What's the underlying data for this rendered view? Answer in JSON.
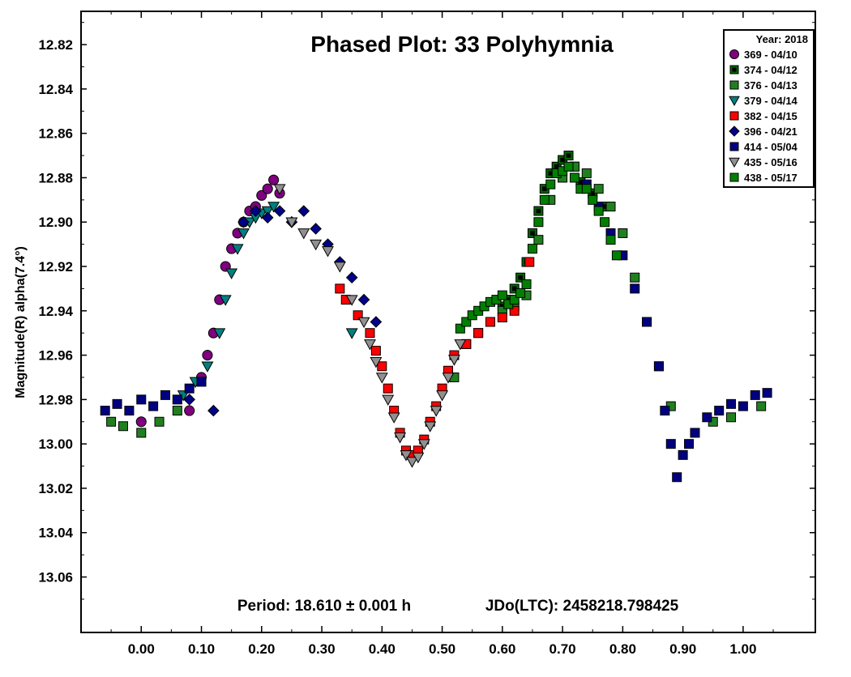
{
  "chart_data": {
    "type": "scatter",
    "title": "Phased Plot: 33 Polyhymnia",
    "xlabel": "",
    "ylabel": "Magnitude(R) alpha(7.4°)",
    "xlim": [
      -0.1,
      1.12
    ],
    "ylim": [
      12.805,
      13.085
    ],
    "y_inverted": true,
    "x_ticks": [
      0.0,
      0.1,
      0.2,
      0.3,
      0.4,
      0.5,
      0.6,
      0.7,
      0.8,
      0.9,
      1.0
    ],
    "x_tick_labels": [
      "0.00",
      "0.10",
      "0.20",
      "0.30",
      "0.40",
      "0.50",
      "0.60",
      "0.70",
      "0.80",
      "0.90",
      "1.00"
    ],
    "y_ticks": [
      12.82,
      12.84,
      12.86,
      12.88,
      12.9,
      12.92,
      12.94,
      12.96,
      12.98,
      13.0,
      13.02,
      13.04,
      13.06
    ],
    "y_tick_labels": [
      "12.82",
      "12.84",
      "12.86",
      "12.88",
      "12.90",
      "12.92",
      "12.94",
      "12.96",
      "12.98",
      "13.00",
      "13.02",
      "13.04",
      "13.06"
    ],
    "annotations": {
      "period": "Period: 18.610 ± 0.001 h",
      "jdo": "JDo(LTC): 2458218.798425"
    },
    "legend": {
      "placement": "top-right",
      "title": "Year: 2018",
      "entries": [
        "369 - 04/10",
        "374 - 04/12",
        "376 - 04/13",
        "379 - 04/14",
        "382 - 04/15",
        "396 - 04/21",
        "414 - 05/04",
        "435 - 05/16",
        "438 - 05/17"
      ]
    },
    "grid": false,
    "series": [
      {
        "name": "369 - 04/10",
        "marker": "circle",
        "color": "#800080",
        "points": [
          [
            0.0,
            12.99
          ],
          [
            0.08,
            12.985
          ],
          [
            0.1,
            12.97
          ],
          [
            0.11,
            12.96
          ],
          [
            0.12,
            12.95
          ],
          [
            0.13,
            12.935
          ],
          [
            0.14,
            12.92
          ],
          [
            0.15,
            12.912
          ],
          [
            0.16,
            12.905
          ],
          [
            0.17,
            12.9
          ],
          [
            0.18,
            12.895
          ],
          [
            0.19,
            12.893
          ],
          [
            0.2,
            12.888
          ],
          [
            0.21,
            12.885
          ],
          [
            0.22,
            12.881
          ],
          [
            0.23,
            12.887
          ]
        ]
      },
      {
        "name": "374 - 04/12",
        "marker": "square",
        "color": "#006400",
        "points": [
          [
            0.6,
            12.938
          ],
          [
            0.61,
            12.935
          ],
          [
            0.62,
            12.93
          ],
          [
            0.63,
            12.925
          ],
          [
            0.64,
            12.918
          ],
          [
            0.65,
            12.905
          ],
          [
            0.66,
            12.895
          ],
          [
            0.67,
            12.885
          ],
          [
            0.68,
            12.878
          ],
          [
            0.69,
            12.875
          ],
          [
            0.7,
            12.872
          ],
          [
            0.71,
            12.87
          ],
          [
            0.72,
            12.875
          ],
          [
            0.73,
            12.882
          ],
          [
            0.75,
            12.887
          ],
          [
            0.77,
            12.893
          ]
        ]
      },
      {
        "name": "376 - 04/13",
        "marker": "square",
        "color": "#208020",
        "points": [
          [
            -0.05,
            12.99
          ],
          [
            -0.03,
            12.992
          ],
          [
            0.0,
            12.995
          ],
          [
            0.03,
            12.99
          ],
          [
            0.06,
            12.985
          ],
          [
            0.52,
            12.97
          ],
          [
            0.54,
            12.955
          ],
          [
            0.56,
            12.95
          ],
          [
            0.58,
            12.945
          ],
          [
            0.6,
            12.94
          ],
          [
            0.62,
            12.938
          ],
          [
            0.64,
            12.933
          ],
          [
            0.66,
            12.908
          ],
          [
            0.68,
            12.89
          ],
          [
            0.7,
            12.88
          ],
          [
            0.72,
            12.875
          ],
          [
            0.74,
            12.878
          ],
          [
            0.76,
            12.885
          ],
          [
            0.78,
            12.893
          ],
          [
            0.8,
            12.905
          ],
          [
            0.82,
            12.925
          ],
          [
            0.84,
            12.945
          ],
          [
            0.86,
            12.965
          ],
          [
            0.88,
            12.983
          ],
          [
            0.95,
            12.99
          ],
          [
            0.98,
            12.988
          ],
          [
            1.03,
            12.983
          ]
        ]
      },
      {
        "name": "379 - 04/14",
        "marker": "triangle-down",
        "color": "#008080",
        "points": [
          [
            0.07,
            12.978
          ],
          [
            0.09,
            12.972
          ],
          [
            0.11,
            12.965
          ],
          [
            0.13,
            12.95
          ],
          [
            0.14,
            12.935
          ],
          [
            0.15,
            12.923
          ],
          [
            0.16,
            12.912
          ],
          [
            0.17,
            12.905
          ],
          [
            0.18,
            12.9
          ],
          [
            0.19,
            12.898
          ],
          [
            0.2,
            12.896
          ],
          [
            0.21,
            12.895
          ],
          [
            0.22,
            12.893
          ],
          [
            0.35,
            12.95
          ]
        ]
      },
      {
        "name": "382 - 04/15",
        "marker": "square",
        "color": "#ff0000",
        "points": [
          [
            0.33,
            12.93
          ],
          [
            0.34,
            12.935
          ],
          [
            0.36,
            12.942
          ],
          [
            0.38,
            12.95
          ],
          [
            0.39,
            12.958
          ],
          [
            0.4,
            12.965
          ],
          [
            0.41,
            12.975
          ],
          [
            0.42,
            12.985
          ],
          [
            0.43,
            12.995
          ],
          [
            0.44,
            13.003
          ],
          [
            0.45,
            13.005
          ],
          [
            0.46,
            13.003
          ],
          [
            0.47,
            12.998
          ],
          [
            0.48,
            12.99
          ],
          [
            0.49,
            12.983
          ],
          [
            0.5,
            12.975
          ],
          [
            0.51,
            12.967
          ],
          [
            0.52,
            12.96
          ],
          [
            0.54,
            12.955
          ],
          [
            0.56,
            12.95
          ],
          [
            0.58,
            12.945
          ],
          [
            0.6,
            12.943
          ],
          [
            0.62,
            12.94
          ],
          [
            0.645,
            12.918
          ]
        ]
      },
      {
        "name": "396 - 04/21",
        "marker": "diamond",
        "color": "#00008b",
        "points": [
          [
            0.17,
            12.9
          ],
          [
            0.19,
            12.895
          ],
          [
            0.21,
            12.898
          ],
          [
            0.23,
            12.895
          ],
          [
            0.25,
            12.9
          ],
          [
            0.27,
            12.895
          ],
          [
            0.29,
            12.903
          ],
          [
            0.31,
            12.91
          ],
          [
            0.33,
            12.918
          ],
          [
            0.35,
            12.925
          ],
          [
            0.37,
            12.935
          ],
          [
            0.39,
            12.945
          ],
          [
            0.08,
            12.98
          ],
          [
            0.12,
            12.985
          ]
        ]
      },
      {
        "name": "414 - 05/04",
        "marker": "square",
        "color": "#000080",
        "points": [
          [
            -0.06,
            12.985
          ],
          [
            -0.04,
            12.982
          ],
          [
            -0.02,
            12.985
          ],
          [
            0.0,
            12.98
          ],
          [
            0.02,
            12.983
          ],
          [
            0.04,
            12.978
          ],
          [
            0.06,
            12.98
          ],
          [
            0.08,
            12.975
          ],
          [
            0.1,
            12.972
          ],
          [
            0.74,
            12.883
          ],
          [
            0.76,
            12.893
          ],
          [
            0.78,
            12.905
          ],
          [
            0.8,
            12.915
          ],
          [
            0.82,
            12.93
          ],
          [
            0.84,
            12.945
          ],
          [
            0.86,
            12.965
          ],
          [
            0.87,
            12.985
          ],
          [
            0.88,
            13.0
          ],
          [
            0.89,
            13.015
          ],
          [
            0.9,
            13.005
          ],
          [
            0.91,
            13.0
          ],
          [
            0.92,
            12.995
          ],
          [
            0.94,
            12.988
          ],
          [
            0.96,
            12.985
          ],
          [
            0.98,
            12.982
          ],
          [
            1.0,
            12.983
          ],
          [
            1.02,
            12.978
          ],
          [
            1.04,
            12.977
          ]
        ]
      },
      {
        "name": "435 - 05/16",
        "marker": "triangle-down",
        "color": "#909090",
        "points": [
          [
            0.23,
            12.885
          ],
          [
            0.25,
            12.9
          ],
          [
            0.27,
            12.905
          ],
          [
            0.29,
            12.91
          ],
          [
            0.31,
            12.913
          ],
          [
            0.33,
            12.92
          ],
          [
            0.35,
            12.935
          ],
          [
            0.37,
            12.945
          ],
          [
            0.38,
            12.955
          ],
          [
            0.39,
            12.963
          ],
          [
            0.4,
            12.97
          ],
          [
            0.41,
            12.98
          ],
          [
            0.42,
            12.988
          ],
          [
            0.43,
            12.997
          ],
          [
            0.44,
            13.005
          ],
          [
            0.45,
            13.008
          ],
          [
            0.46,
            13.006
          ],
          [
            0.47,
            13.0
          ],
          [
            0.48,
            12.992
          ],
          [
            0.49,
            12.985
          ],
          [
            0.5,
            12.978
          ],
          [
            0.51,
            12.97
          ],
          [
            0.52,
            12.962
          ],
          [
            0.53,
            12.955
          ]
        ]
      },
      {
        "name": "438 - 05/17",
        "marker": "square",
        "color": "#008000",
        "points": [
          [
            0.53,
            12.948
          ],
          [
            0.54,
            12.945
          ],
          [
            0.55,
            12.942
          ],
          [
            0.56,
            12.94
          ],
          [
            0.57,
            12.938
          ],
          [
            0.58,
            12.936
          ],
          [
            0.59,
            12.935
          ],
          [
            0.6,
            12.933
          ],
          [
            0.61,
            12.937
          ],
          [
            0.62,
            12.935
          ],
          [
            0.63,
            12.932
          ],
          [
            0.64,
            12.928
          ],
          [
            0.65,
            12.912
          ],
          [
            0.66,
            12.9
          ],
          [
            0.67,
            12.89
          ],
          [
            0.68,
            12.883
          ],
          [
            0.69,
            12.878
          ],
          [
            0.7,
            12.877
          ],
          [
            0.71,
            12.875
          ],
          [
            0.72,
            12.88
          ],
          [
            0.73,
            12.885
          ],
          [
            0.74,
            12.885
          ],
          [
            0.75,
            12.89
          ],
          [
            0.76,
            12.895
          ],
          [
            0.77,
            12.9
          ],
          [
            0.78,
            12.908
          ],
          [
            0.79,
            12.915
          ]
        ]
      }
    ]
  }
}
